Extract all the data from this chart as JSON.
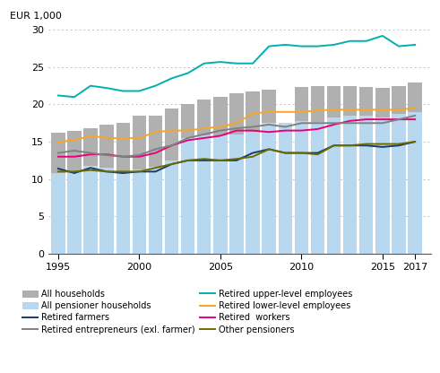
{
  "years": [
    1995,
    1996,
    1997,
    1998,
    1999,
    2000,
    2001,
    2002,
    2003,
    2004,
    2005,
    2006,
    2007,
    2008,
    2009,
    2010,
    2011,
    2012,
    2013,
    2014,
    2015,
    2016,
    2017
  ],
  "all_households": [
    16.2,
    16.4,
    16.8,
    17.3,
    17.5,
    18.5,
    18.5,
    19.5,
    20.0,
    20.7,
    21.0,
    21.5,
    21.8,
    22.0,
    17.5,
    22.3,
    22.5,
    22.5,
    22.5,
    22.3,
    22.2,
    22.5,
    23.0
  ],
  "all_pensioner": [
    10.8,
    11.0,
    11.8,
    11.5,
    11.0,
    11.3,
    11.7,
    12.5,
    15.5,
    15.8,
    15.8,
    16.0,
    16.3,
    17.5,
    17.5,
    17.8,
    17.7,
    18.3,
    18.5,
    18.5,
    18.3,
    18.7,
    19.0
  ],
  "retired_farmers": [
    11.4,
    10.8,
    11.5,
    11.0,
    10.8,
    11.0,
    11.0,
    12.0,
    12.5,
    12.5,
    12.5,
    12.5,
    13.5,
    14.0,
    13.5,
    13.5,
    13.5,
    14.5,
    14.5,
    14.5,
    14.3,
    14.5,
    15.0
  ],
  "retired_entrepreneurs": [
    13.5,
    13.8,
    13.5,
    13.2,
    13.0,
    13.2,
    14.0,
    14.5,
    15.5,
    16.0,
    16.5,
    16.8,
    17.0,
    17.3,
    17.0,
    17.5,
    17.5,
    17.5,
    17.5,
    17.5,
    17.5,
    18.0,
    18.5
  ],
  "retired_upper_employees": [
    21.2,
    21.0,
    22.5,
    22.2,
    21.8,
    21.8,
    22.5,
    23.5,
    24.2,
    25.5,
    25.7,
    25.5,
    25.5,
    27.8,
    28.0,
    27.8,
    27.8,
    28.0,
    28.5,
    28.5,
    29.2,
    27.8,
    28.0
  ],
  "retired_lower_employees": [
    15.0,
    15.2,
    15.8,
    15.5,
    15.5,
    15.5,
    16.3,
    16.5,
    16.5,
    16.8,
    17.0,
    17.5,
    18.8,
    19.0,
    19.0,
    19.0,
    19.2,
    19.3,
    19.3,
    19.3,
    19.3,
    19.3,
    19.5
  ],
  "retired_workers": [
    13.0,
    13.0,
    13.3,
    13.3,
    13.0,
    13.0,
    13.5,
    14.5,
    15.2,
    15.5,
    15.8,
    16.5,
    16.5,
    16.3,
    16.5,
    16.5,
    16.7,
    17.3,
    17.8,
    18.0,
    18.0,
    18.0,
    18.0
  ],
  "other_pensioners": [
    11.0,
    11.0,
    11.2,
    11.0,
    11.0,
    11.0,
    11.5,
    12.0,
    12.5,
    12.7,
    12.5,
    12.7,
    13.0,
    14.0,
    13.5,
    13.5,
    13.3,
    14.5,
    14.5,
    14.7,
    14.7,
    14.7,
    15.0
  ],
  "bar_color_all": "#b0b0b0",
  "bar_color_pensioner": "#b8d8f0",
  "color_farmers": "#1a3a6b",
  "color_entrepreneurs": "#808080",
  "color_upper": "#00b0b0",
  "color_lower": "#f5a623",
  "color_workers": "#e8007a",
  "color_other": "#6b6b00",
  "ylabel": "EUR 1,000",
  "ylim": [
    0,
    30
  ],
  "yticks": [
    0,
    5,
    10,
    15,
    20,
    25,
    30
  ],
  "xticks": [
    1995,
    2000,
    2005,
    2010,
    2015,
    2017
  ]
}
